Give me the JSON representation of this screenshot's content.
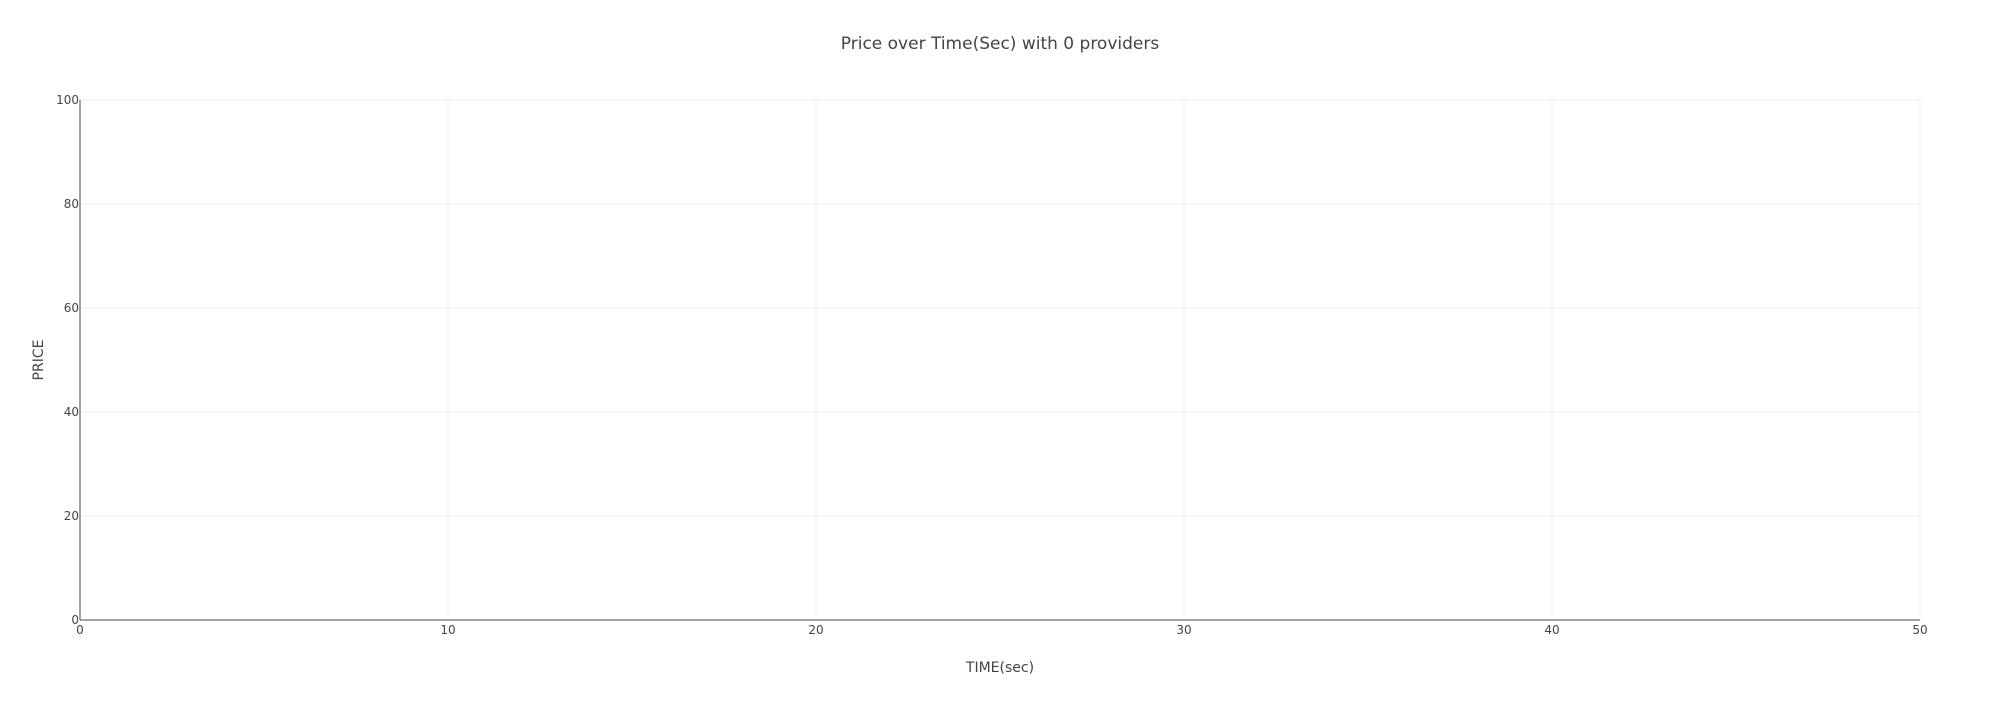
{
  "chart_data": {
    "type": "line",
    "title": "Price over Time(Sec) with 0 providers",
    "xlabel": "TIME(sec)",
    "ylabel": "PRICE",
    "xlim": [
      0,
      50
    ],
    "ylim": [
      0,
      100
    ],
    "x_ticks": [
      0,
      10,
      20,
      30,
      40,
      50
    ],
    "y_ticks": [
      0,
      20,
      40,
      60,
      80,
      100
    ],
    "grid": true,
    "series": []
  }
}
